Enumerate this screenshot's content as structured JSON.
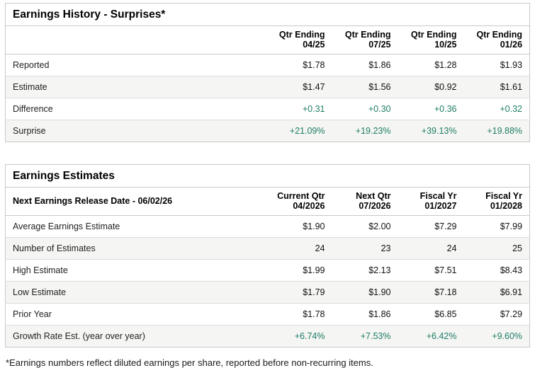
{
  "colors": {
    "green": "#1e7d64",
    "border_outer": "#c9c9c9",
    "border_inner": "#dcdcdc",
    "row_alt_bg": "#f5f5f3"
  },
  "earnings_history": {
    "title": "Earnings History - Surprises*",
    "columns": [
      {
        "line1": "Qtr Ending",
        "line2": "04/25"
      },
      {
        "line1": "Qtr Ending",
        "line2": "07/25"
      },
      {
        "line1": "Qtr Ending",
        "line2": "10/25"
      },
      {
        "line1": "Qtr Ending",
        "line2": "01/26"
      }
    ],
    "rows": [
      {
        "label": "Reported",
        "values": [
          "$1.78",
          "$1.86",
          "$1.28",
          "$1.93"
        ],
        "green": false
      },
      {
        "label": "Estimate",
        "values": [
          "$1.47",
          "$1.56",
          "$0.92",
          "$1.61"
        ],
        "green": false
      },
      {
        "label": "Difference",
        "values": [
          "+0.31",
          "+0.30",
          "+0.36",
          "+0.32"
        ],
        "green": true
      },
      {
        "label": "Surprise",
        "values": [
          "+21.09%",
          "+19.23%",
          "+39.13%",
          "+19.88%"
        ],
        "green": true
      }
    ]
  },
  "earnings_estimates": {
    "title": "Earnings Estimates",
    "release_date_label": "Next Earnings Release Date - 06/02/26",
    "columns": [
      {
        "line1": "Current Qtr",
        "line2": "04/2026"
      },
      {
        "line1": "Next Qtr",
        "line2": "07/2026"
      },
      {
        "line1": "Fiscal Yr",
        "line2": "01/2027"
      },
      {
        "line1": "Fiscal Yr",
        "line2": "01/2028"
      }
    ],
    "rows": [
      {
        "label": "Average Earnings Estimate",
        "values": [
          "$1.90",
          "$2.00",
          "$7.29",
          "$7.99"
        ],
        "green": false
      },
      {
        "label": "Number of Estimates",
        "values": [
          "24",
          "23",
          "24",
          "25"
        ],
        "green": false
      },
      {
        "label": "High Estimate",
        "values": [
          "$1.99",
          "$2.13",
          "$7.51",
          "$8.43"
        ],
        "green": false
      },
      {
        "label": "Low Estimate",
        "values": [
          "$1.79",
          "$1.90",
          "$7.18",
          "$6.91"
        ],
        "green": false
      },
      {
        "label": "Prior Year",
        "values": [
          "$1.78",
          "$1.86",
          "$6.85",
          "$7.29"
        ],
        "green": false
      },
      {
        "label": "Growth Rate Est. (year over year)",
        "values": [
          "+6.74%",
          "+7.53%",
          "+6.42%",
          "+9.60%"
        ],
        "green": true
      }
    ]
  },
  "footnote": "*Earnings numbers reflect diluted earnings per share, reported before non-recurring items."
}
